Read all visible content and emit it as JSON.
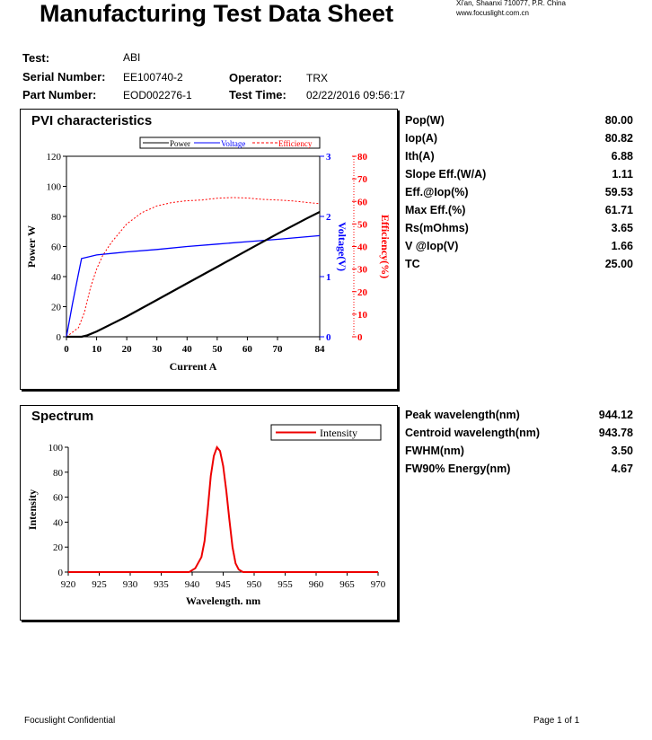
{
  "header": {
    "title": "Manufacturing Test Data Sheet",
    "address_line1": "Xi'an, Shaanxi 710077, P.R. China",
    "address_line2": "www.focuslight.com.cn"
  },
  "info": {
    "test_label": "Test:",
    "test_value": "ABI",
    "serial_label": "Serial Number:",
    "serial_value": "EE100740-2",
    "part_label": "Part Number:",
    "part_value": "EOD002276-1",
    "operator_label": "Operator:",
    "operator_value": "TRX",
    "time_label": "Test Time:",
    "time_value": "02/22/2016 09:56:17"
  },
  "pvi": {
    "title": "PVI characteristics",
    "metrics": [
      {
        "label": "Pop(W)",
        "value": "80.00"
      },
      {
        "label": "Iop(A)",
        "value": "80.82"
      },
      {
        "label": "Ith(A)",
        "value": "6.88"
      },
      {
        "label": "Slope Eff.(W/A)",
        "value": "1.11"
      },
      {
        "label": "Eff.@Iop(%)",
        "value": "59.53"
      },
      {
        "label": "Max Eff.(%)",
        "value": "61.71"
      },
      {
        "label": "Rs(mOhms)",
        "value": "3.65"
      },
      {
        "label": "V @Iop(V)",
        "value": "1.66"
      },
      {
        "label": "TC",
        "value": "25.00"
      }
    ]
  },
  "spectrum": {
    "title": "Spectrum",
    "metrics": [
      {
        "label": "Peak wavelength(nm)",
        "value": "944.12"
      },
      {
        "label": "Centroid wavelength(nm)",
        "value": "943.78"
      },
      {
        "label": "FWHM(nm)",
        "value": "3.50"
      },
      {
        "label": "FW90% Energy(nm)",
        "value": "4.67"
      }
    ]
  },
  "footer": {
    "left": "Focuslight Confidential",
    "right": "Page 1 of 1"
  },
  "chart_data": [
    {
      "type": "line",
      "title": "PVI characteristics",
      "xlabel": "Current A",
      "xlim": [
        0,
        84
      ],
      "xticks": [
        0,
        10,
        20,
        30,
        40,
        50,
        60,
        70,
        84
      ],
      "ylabel": "Power W",
      "ylim": [
        0,
        120
      ],
      "yticks": [
        0,
        20,
        40,
        60,
        80,
        100,
        120
      ],
      "y2label": "Voltage(V)",
      "y2lim": [
        0,
        3
      ],
      "y2ticks": [
        0,
        1,
        2,
        3
      ],
      "y3label": "Efficiency(%)",
      "y3lim": [
        0,
        80
      ],
      "y3ticks": [
        0,
        10,
        20,
        30,
        40,
        50,
        60,
        70,
        80
      ],
      "legend": [
        "Power",
        "Voltage",
        "Efficiency"
      ],
      "colors": {
        "Power": "#000000",
        "Voltage": "#0000ff",
        "Efficiency": "#ff0000"
      },
      "series": [
        {
          "name": "Power",
          "axis": "left",
          "x": [
            0,
            5,
            7,
            10,
            20,
            30,
            40,
            50,
            60,
            70,
            80,
            84
          ],
          "y": [
            0,
            0,
            1,
            3.5,
            13.5,
            24.5,
            35.5,
            46.5,
            57.5,
            68.5,
            79,
            83
          ]
        },
        {
          "name": "Voltage",
          "axis": "right",
          "x": [
            0,
            2,
            4,
            5,
            10,
            20,
            30,
            40,
            50,
            60,
            70,
            84
          ],
          "y": [
            0,
            0.55,
            1.05,
            1.3,
            1.36,
            1.41,
            1.45,
            1.5,
            1.54,
            1.58,
            1.62,
            1.68
          ]
        },
        {
          "name": "Efficiency",
          "axis": "third",
          "x": [
            0,
            4,
            6,
            8,
            10,
            12,
            15,
            20,
            25,
            30,
            35,
            40,
            45,
            50,
            55,
            60,
            65,
            70,
            75,
            80,
            84
          ],
          "y": [
            0,
            4,
            11,
            22,
            30,
            36,
            42,
            50,
            55,
            58,
            59.5,
            60.3,
            60.6,
            61.4,
            61.7,
            61.5,
            60.9,
            60.6,
            60.2,
            59.5,
            59
          ]
        }
      ]
    },
    {
      "type": "line",
      "title": "Spectrum",
      "xlabel": "Wavelength. nm",
      "xlim": [
        920,
        970
      ],
      "xticks": [
        920,
        925,
        930,
        935,
        940,
        945,
        950,
        955,
        960,
        965,
        970
      ],
      "ylabel": "Intensity",
      "ylim": [
        0,
        100
      ],
      "yticks": [
        0,
        20,
        40,
        60,
        80,
        100
      ],
      "legend": [
        "Intensity"
      ],
      "colors": {
        "Intensity": "#ee0000"
      },
      "series": [
        {
          "name": "Intensity",
          "x": [
            920,
            939.5,
            940.5,
            941.5,
            942,
            942.5,
            943,
            943.5,
            944,
            944.5,
            945,
            945.5,
            946,
            946.5,
            947,
            947.5,
            948.2,
            970
          ],
          "y": [
            0,
            0,
            3,
            12,
            25,
            50,
            77,
            93,
            100,
            97,
            85,
            65,
            42,
            20,
            7,
            2,
            0,
            0
          ]
        }
      ]
    }
  ]
}
